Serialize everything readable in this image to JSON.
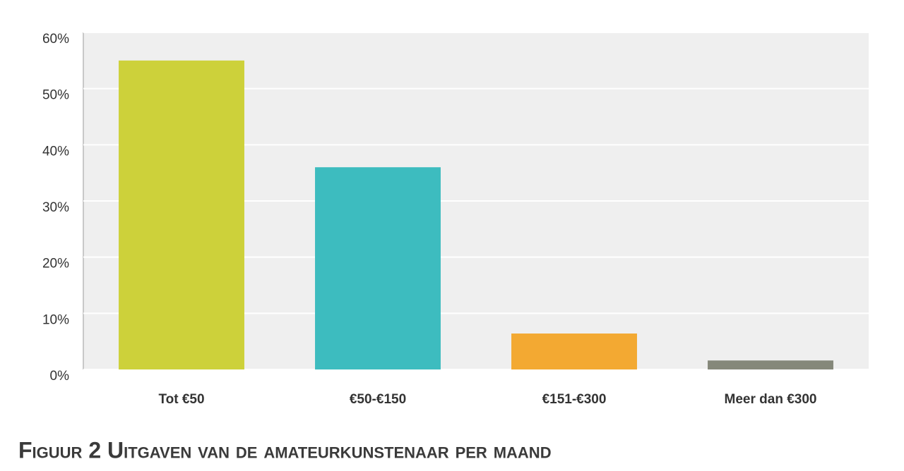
{
  "chart_data": {
    "type": "bar",
    "caption": "Figuur 2 Uitgaven van de amateurkunstenaar per maand",
    "categories": [
      "Tot €50",
      "€50-€150",
      "€151-€300",
      "Meer dan €300"
    ],
    "values": [
      55,
      36,
      6.4,
      1.6
    ],
    "colors": [
      "#cdd13a",
      "#3dbcbf",
      "#f3a932",
      "#85887a"
    ],
    "ylim": [
      0,
      60
    ],
    "yticks": [
      {
        "value": 0,
        "label": "0%"
      },
      {
        "value": 10,
        "label": "10%"
      },
      {
        "value": 20,
        "label": "20%"
      },
      {
        "value": 30,
        "label": "30%"
      },
      {
        "value": 40,
        "label": "40%"
      },
      {
        "value": 50,
        "label": "50%"
      },
      {
        "value": 60,
        "label": "60%"
      }
    ],
    "grid": true
  }
}
